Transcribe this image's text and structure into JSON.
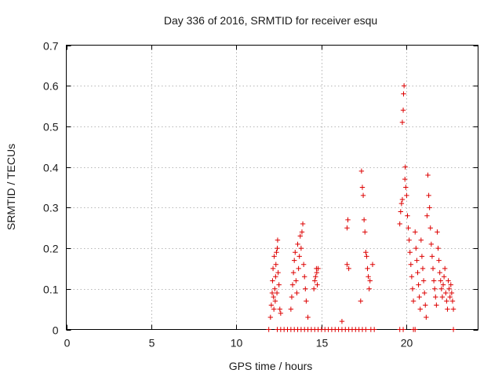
{
  "chart_data": {
    "type": "scatter",
    "title": "Day 336 of 2016, SRMTID for receiver esqu",
    "xlabel": "GPS time / hours",
    "ylabel": "SRMTID / TECUs",
    "xlim": [
      0,
      24.2
    ],
    "ylim": [
      0,
      0.7
    ],
    "xticks": [
      0,
      5,
      10,
      15,
      20
    ],
    "yticks": [
      0,
      0.1,
      0.2,
      0.3,
      0.4,
      0.5,
      0.6,
      0.7
    ],
    "xtick_labels": [
      "0",
      "5",
      "10",
      "15",
      "20"
    ],
    "ytick_labels": [
      "0",
      "0.1",
      "0.2",
      "0.3",
      "0.4",
      "0.5",
      "0.6",
      "0.7"
    ],
    "grid": true,
    "marker": "plus",
    "series": [
      {
        "name": "SRMTID",
        "color": "#dd0000",
        "points": [
          [
            11.9,
            0
          ],
          [
            12.0,
            0.03
          ],
          [
            12.05,
            0.06
          ],
          [
            12.1,
            0.09
          ],
          [
            12.12,
            0.12
          ],
          [
            12.15,
            0.15
          ],
          [
            12.18,
            0.08
          ],
          [
            12.2,
            0.05
          ],
          [
            12.22,
            0.18
          ],
          [
            12.25,
            0.1
          ],
          [
            12.28,
            0.07
          ],
          [
            12.3,
            0.13
          ],
          [
            12.32,
            0.16
          ],
          [
            12.35,
            0.19
          ],
          [
            12.38,
            0.09
          ],
          [
            12.4,
            0.2
          ],
          [
            12.42,
            0.22
          ],
          [
            12.45,
            0.14
          ],
          [
            12.5,
            0.11
          ],
          [
            12.55,
            0.05
          ],
          [
            12.6,
            0.04
          ],
          [
            12.4,
            0
          ],
          [
            12.6,
            0
          ],
          [
            12.8,
            0
          ],
          [
            13.0,
            0
          ],
          [
            13.2,
            0
          ],
          [
            13.4,
            0
          ],
          [
            13.6,
            0
          ],
          [
            13.8,
            0
          ],
          [
            14.0,
            0
          ],
          [
            14.2,
            0
          ],
          [
            14.4,
            0
          ],
          [
            14.6,
            0
          ],
          [
            14.8,
            0
          ],
          [
            15.0,
            0
          ],
          [
            15.2,
            0
          ],
          [
            15.4,
            0
          ],
          [
            15.6,
            0
          ],
          [
            15.8,
            0
          ],
          [
            16.0,
            0
          ],
          [
            16.2,
            0
          ],
          [
            16.4,
            0
          ],
          [
            16.6,
            0
          ],
          [
            16.8,
            0
          ],
          [
            17.0,
            0
          ],
          [
            17.2,
            0
          ],
          [
            17.4,
            0
          ],
          [
            17.6,
            0
          ],
          [
            17.9,
            0
          ],
          [
            18.1,
            0
          ],
          [
            19.6,
            0
          ],
          [
            19.8,
            0
          ],
          [
            20.4,
            0
          ],
          [
            20.5,
            0
          ],
          [
            13.2,
            0.05
          ],
          [
            13.25,
            0.08
          ],
          [
            13.3,
            0.11
          ],
          [
            13.35,
            0.14
          ],
          [
            13.4,
            0.17
          ],
          [
            13.45,
            0.19
          ],
          [
            13.5,
            0.12
          ],
          [
            13.55,
            0.09
          ],
          [
            13.6,
            0.21
          ],
          [
            13.65,
            0.15
          ],
          [
            13.7,
            0.18
          ],
          [
            13.75,
            0.23
          ],
          [
            13.8,
            0.2
          ],
          [
            13.85,
            0.24
          ],
          [
            13.9,
            0.26
          ],
          [
            13.95,
            0.16
          ],
          [
            14.0,
            0.13
          ],
          [
            14.05,
            0.1
          ],
          [
            14.1,
            0.07
          ],
          [
            14.2,
            0.03
          ],
          [
            14.55,
            0.1
          ],
          [
            14.6,
            0.12
          ],
          [
            14.65,
            0.13
          ],
          [
            14.7,
            0.15
          ],
          [
            14.72,
            0.14
          ],
          [
            14.75,
            0.11
          ],
          [
            14.8,
            0.15
          ],
          [
            16.2,
            0.02
          ],
          [
            16.5,
            0.25
          ],
          [
            16.55,
            0.27
          ],
          [
            16.5,
            0.16
          ],
          [
            16.6,
            0.15
          ],
          [
            17.3,
            0.07
          ],
          [
            17.35,
            0.39
          ],
          [
            17.4,
            0.35
          ],
          [
            17.45,
            0.33
          ],
          [
            17.5,
            0.27
          ],
          [
            17.55,
            0.24
          ],
          [
            17.6,
            0.19
          ],
          [
            17.65,
            0.18
          ],
          [
            17.7,
            0.15
          ],
          [
            17.75,
            0.13
          ],
          [
            17.8,
            0.1
          ],
          [
            17.85,
            0.12
          ],
          [
            18.0,
            0.16
          ],
          [
            19.6,
            0.26
          ],
          [
            19.65,
            0.29
          ],
          [
            19.7,
            0.31
          ],
          [
            19.75,
            0.32
          ],
          [
            19.75,
            0.51
          ],
          [
            19.8,
            0.54
          ],
          [
            19.82,
            0.58
          ],
          [
            19.85,
            0.6
          ],
          [
            19.9,
            0.37
          ],
          [
            19.92,
            0.4
          ],
          [
            19.95,
            0.35
          ],
          [
            20.0,
            0.33
          ],
          [
            20.05,
            0.28
          ],
          [
            20.1,
            0.25
          ],
          [
            20.15,
            0.22
          ],
          [
            20.2,
            0.19
          ],
          [
            20.25,
            0.16
          ],
          [
            20.3,
            0.13
          ],
          [
            20.35,
            0.1
          ],
          [
            20.4,
            0.07
          ],
          [
            20.5,
            0.24
          ],
          [
            20.55,
            0.2
          ],
          [
            20.6,
            0.17
          ],
          [
            20.65,
            0.14
          ],
          [
            20.7,
            0.11
          ],
          [
            20.75,
            0.08
          ],
          [
            20.8,
            0.05
          ],
          [
            20.85,
            0.22
          ],
          [
            20.9,
            0.18
          ],
          [
            20.95,
            0.15
          ],
          [
            21.0,
            0.12
          ],
          [
            21.05,
            0.09
          ],
          [
            21.1,
            0.06
          ],
          [
            21.15,
            0.03
          ],
          [
            21.2,
            0.28
          ],
          [
            21.25,
            0.38
          ],
          [
            21.3,
            0.33
          ],
          [
            21.35,
            0.3
          ],
          [
            21.4,
            0.25
          ],
          [
            21.45,
            0.21
          ],
          [
            21.5,
            0.18
          ],
          [
            21.55,
            0.15
          ],
          [
            21.6,
            0.12
          ],
          [
            21.65,
            0.1
          ],
          [
            21.7,
            0.08
          ],
          [
            21.75,
            0.06
          ],
          [
            21.8,
            0.24
          ],
          [
            21.85,
            0.2
          ],
          [
            21.9,
            0.17
          ],
          [
            21.95,
            0.14
          ],
          [
            22.0,
            0.12
          ],
          [
            22.05,
            0.1
          ],
          [
            22.1,
            0.08
          ],
          [
            22.15,
            0.11
          ],
          [
            22.2,
            0.13
          ],
          [
            22.25,
            0.15
          ],
          [
            22.3,
            0.09
          ],
          [
            22.35,
            0.07
          ],
          [
            22.4,
            0.05
          ],
          [
            22.45,
            0.12
          ],
          [
            22.5,
            0.1
          ],
          [
            22.55,
            0.08
          ],
          [
            22.6,
            0.11
          ],
          [
            22.65,
            0.09
          ],
          [
            22.7,
            0.07
          ],
          [
            22.75,
            0.05
          ],
          [
            22.75,
            0
          ]
        ]
      }
    ]
  }
}
